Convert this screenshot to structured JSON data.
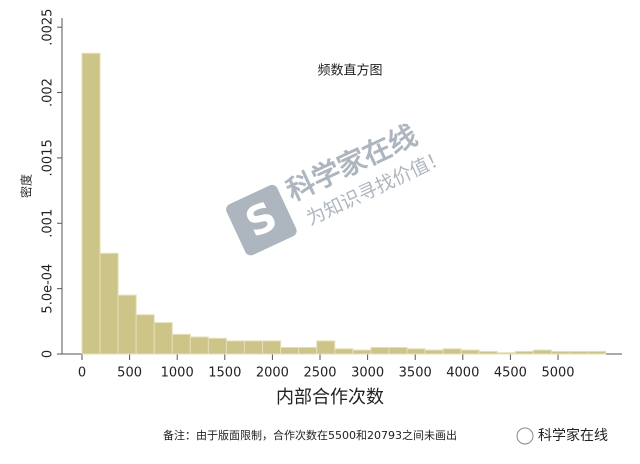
{
  "chart_data": {
    "type": "histogram",
    "annotation": "频数直方图",
    "xlabel": "内部合作次数",
    "ylabel": "密度",
    "footnote": "备注：由于版面限制，合作次数在5500和20793之间未画出",
    "watermark": {
      "title": "科学家在线",
      "slogan": "为知识寻找价值！"
    },
    "source": "科学家在线",
    "bins": [
      0,
      189.66,
      379.31,
      568.97,
      758.62,
      948.28,
      1137.93,
      1327.59,
      1517.24,
      1706.9,
      1896.55,
      2086.21,
      2275.86,
      2465.52,
      2655.17,
      2844.83,
      3034.48,
      3224.14,
      3413.79,
      3603.45,
      3793.1,
      3982.76,
      4172.41,
      4362.07,
      4551.72,
      4741.38,
      4931.03,
      5120.69,
      5310.34,
      5500
    ],
    "values": [
      0.0023,
      0.00077,
      0.00045,
      0.0003,
      0.00024,
      0.00015,
      0.00013,
      0.00012,
      0.0001,
      0.0001,
      0.0001,
      5e-05,
      5e-05,
      0.0001,
      4e-05,
      3e-05,
      5e-05,
      5e-05,
      4e-05,
      3e-05,
      4e-05,
      3e-05,
      2e-05,
      1e-05,
      2e-05,
      3e-05,
      2e-05,
      2e-05,
      2e-05
    ],
    "color": "#cdc587",
    "xlim": [
      -210,
      5672
    ],
    "ylim": [
      0,
      0.00257
    ],
    "xticks": [
      0,
      500,
      1000,
      1500,
      2000,
      2500,
      3000,
      3500,
      4000,
      4500,
      5000
    ],
    "yticks": [
      0,
      {
        "value": 0.0005,
        "label": "5.0e-04"
      },
      {
        "value": 0.001,
        "label": ".001"
      },
      {
        "value": 0.0015,
        "label": ".0015"
      },
      {
        "value": 0.002,
        "label": ".002"
      },
      {
        "value": 0.0025,
        "label": ".0025"
      }
    ]
  }
}
